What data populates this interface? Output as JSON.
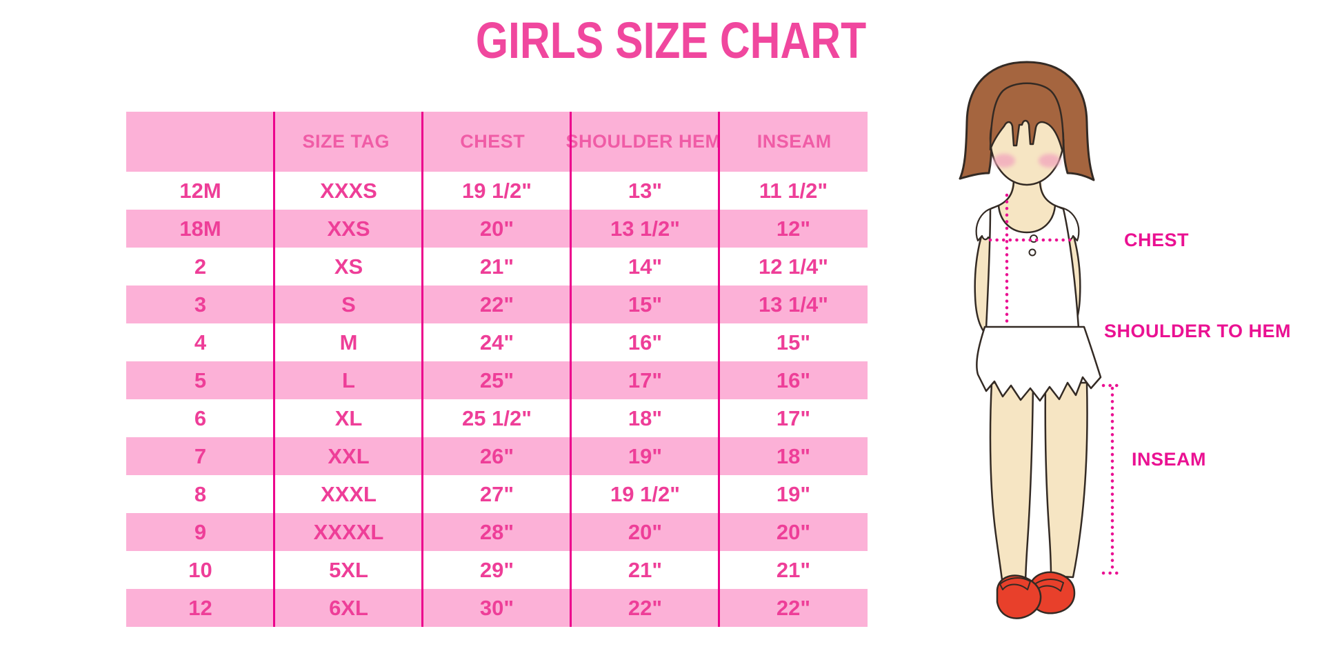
{
  "title": "GIRLS SIZE CHART",
  "table": {
    "headers": [
      "",
      "SIZE TAG",
      "CHEST",
      "SHOULDER HEM",
      "INSEAM"
    ]
  },
  "chart_data": {
    "type": "table",
    "title": "GIRLS SIZE CHART",
    "columns": [
      "",
      "SIZE TAG",
      "CHEST",
      "SHOULDER HEM",
      "INSEAM"
    ],
    "rows": [
      [
        "12M",
        "XXXS",
        "19 1/2\"",
        "13\"",
        "11 1/2\""
      ],
      [
        "18M",
        "XXS",
        "20\"",
        "13 1/2\"",
        "12\""
      ],
      [
        "2",
        "XS",
        "21\"",
        "14\"",
        "12 1/4\""
      ],
      [
        "3",
        "S",
        "22\"",
        "15\"",
        "13 1/4\""
      ],
      [
        "4",
        "M",
        "24\"",
        "16\"",
        "15\""
      ],
      [
        "5",
        "L",
        "25\"",
        "17\"",
        "16\""
      ],
      [
        "6",
        "XL",
        "25 1/2\"",
        "18\"",
        "17\""
      ],
      [
        "7",
        "XXL",
        "26\"",
        "19\"",
        "18\""
      ],
      [
        "8",
        "XXXL",
        "27\"",
        "19 1/2\"",
        "19\""
      ],
      [
        "9",
        "XXXXL",
        "28\"",
        "20\"",
        "20\""
      ],
      [
        "10",
        "5XL",
        "29\"",
        "21\"",
        "21\""
      ],
      [
        "12",
        "6XL",
        "30\"",
        "22\"",
        "22\""
      ]
    ],
    "annotations": [
      "CHEST",
      "SHOULDER TO HEM",
      "INSEAM"
    ],
    "layout": {
      "stripe_pattern": "header pink, then alternating white/pink",
      "grid": "vertical magenta dividers only"
    }
  },
  "figure": {
    "chest_label": "CHEST",
    "shoulder_to_hem_label": "SHOULDER TO HEM",
    "inseam_label": "INSEAM"
  },
  "colors": {
    "title_pink": "#F0479E",
    "stripe_pink": "#FCB1D7",
    "divider_magenta": "#EC008C",
    "header_text_pink": "#F05CA6",
    "cell_text_pink": "#EE3E98",
    "label_magenta": "#EA1192",
    "hair_brown": "#A5653F",
    "skin": "#F6E5C3",
    "blush": "#F2A8BE",
    "shoe_red": "#E8402B",
    "outline_dark": "#332A24"
  }
}
